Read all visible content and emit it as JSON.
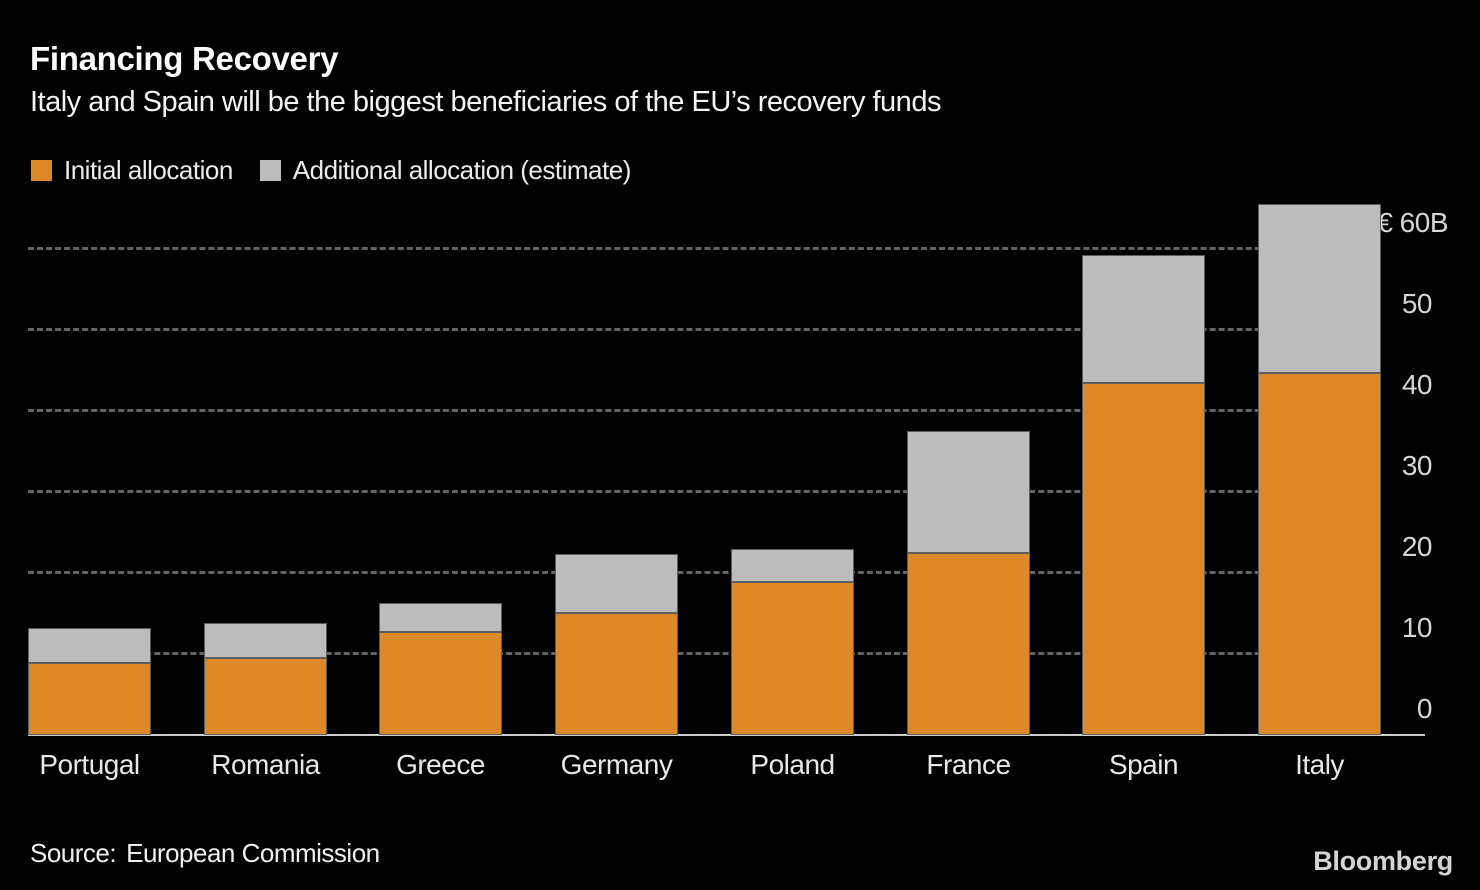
{
  "header": {
    "title": "Financing Recovery",
    "subtitle": "Italy and Spain will be the biggest beneficiaries of the EU’s recovery funds"
  },
  "legend": [
    {
      "label": "Initial allocation",
      "color": "#de8927"
    },
    {
      "label": "Additional allocation (estimate)",
      "color": "#bcbcbc"
    }
  ],
  "chart_data": {
    "type": "bar",
    "stacked": true,
    "title": "Financing Recovery",
    "subtitle": "Italy and Spain will be the biggest beneficiaries of the EU’s recovery funds",
    "unit": "€B",
    "categories": [
      "Portugal",
      "Romania",
      "Greece",
      "Germany",
      "Poland",
      "France",
      "Spain",
      "Italy"
    ],
    "series": [
      {
        "name": "Initial allocation",
        "color": "#de8927",
        "values": [
          8.9,
          9.5,
          12.7,
          15.1,
          18.9,
          22.5,
          43.5,
          44.7
        ]
      },
      {
        "name": "Additional allocation (estimate)",
        "color": "#bcbcbc",
        "values": [
          4.3,
          4.3,
          3.6,
          7.3,
          4.1,
          15.0,
          15.7,
          20.8
        ]
      }
    ],
    "y_axis": {
      "side": "right",
      "ticks": [
        0,
        10,
        20,
        30,
        40,
        50,
        60
      ],
      "top_tick_label": "€ 60B",
      "ylim": [
        0,
        66
      ]
    },
    "grid": "horizontal-dashed",
    "legend_position": "top-left"
  },
  "footer": {
    "source_label": "Source:",
    "source_value": "European Commission",
    "brand": "Bloomberg"
  }
}
